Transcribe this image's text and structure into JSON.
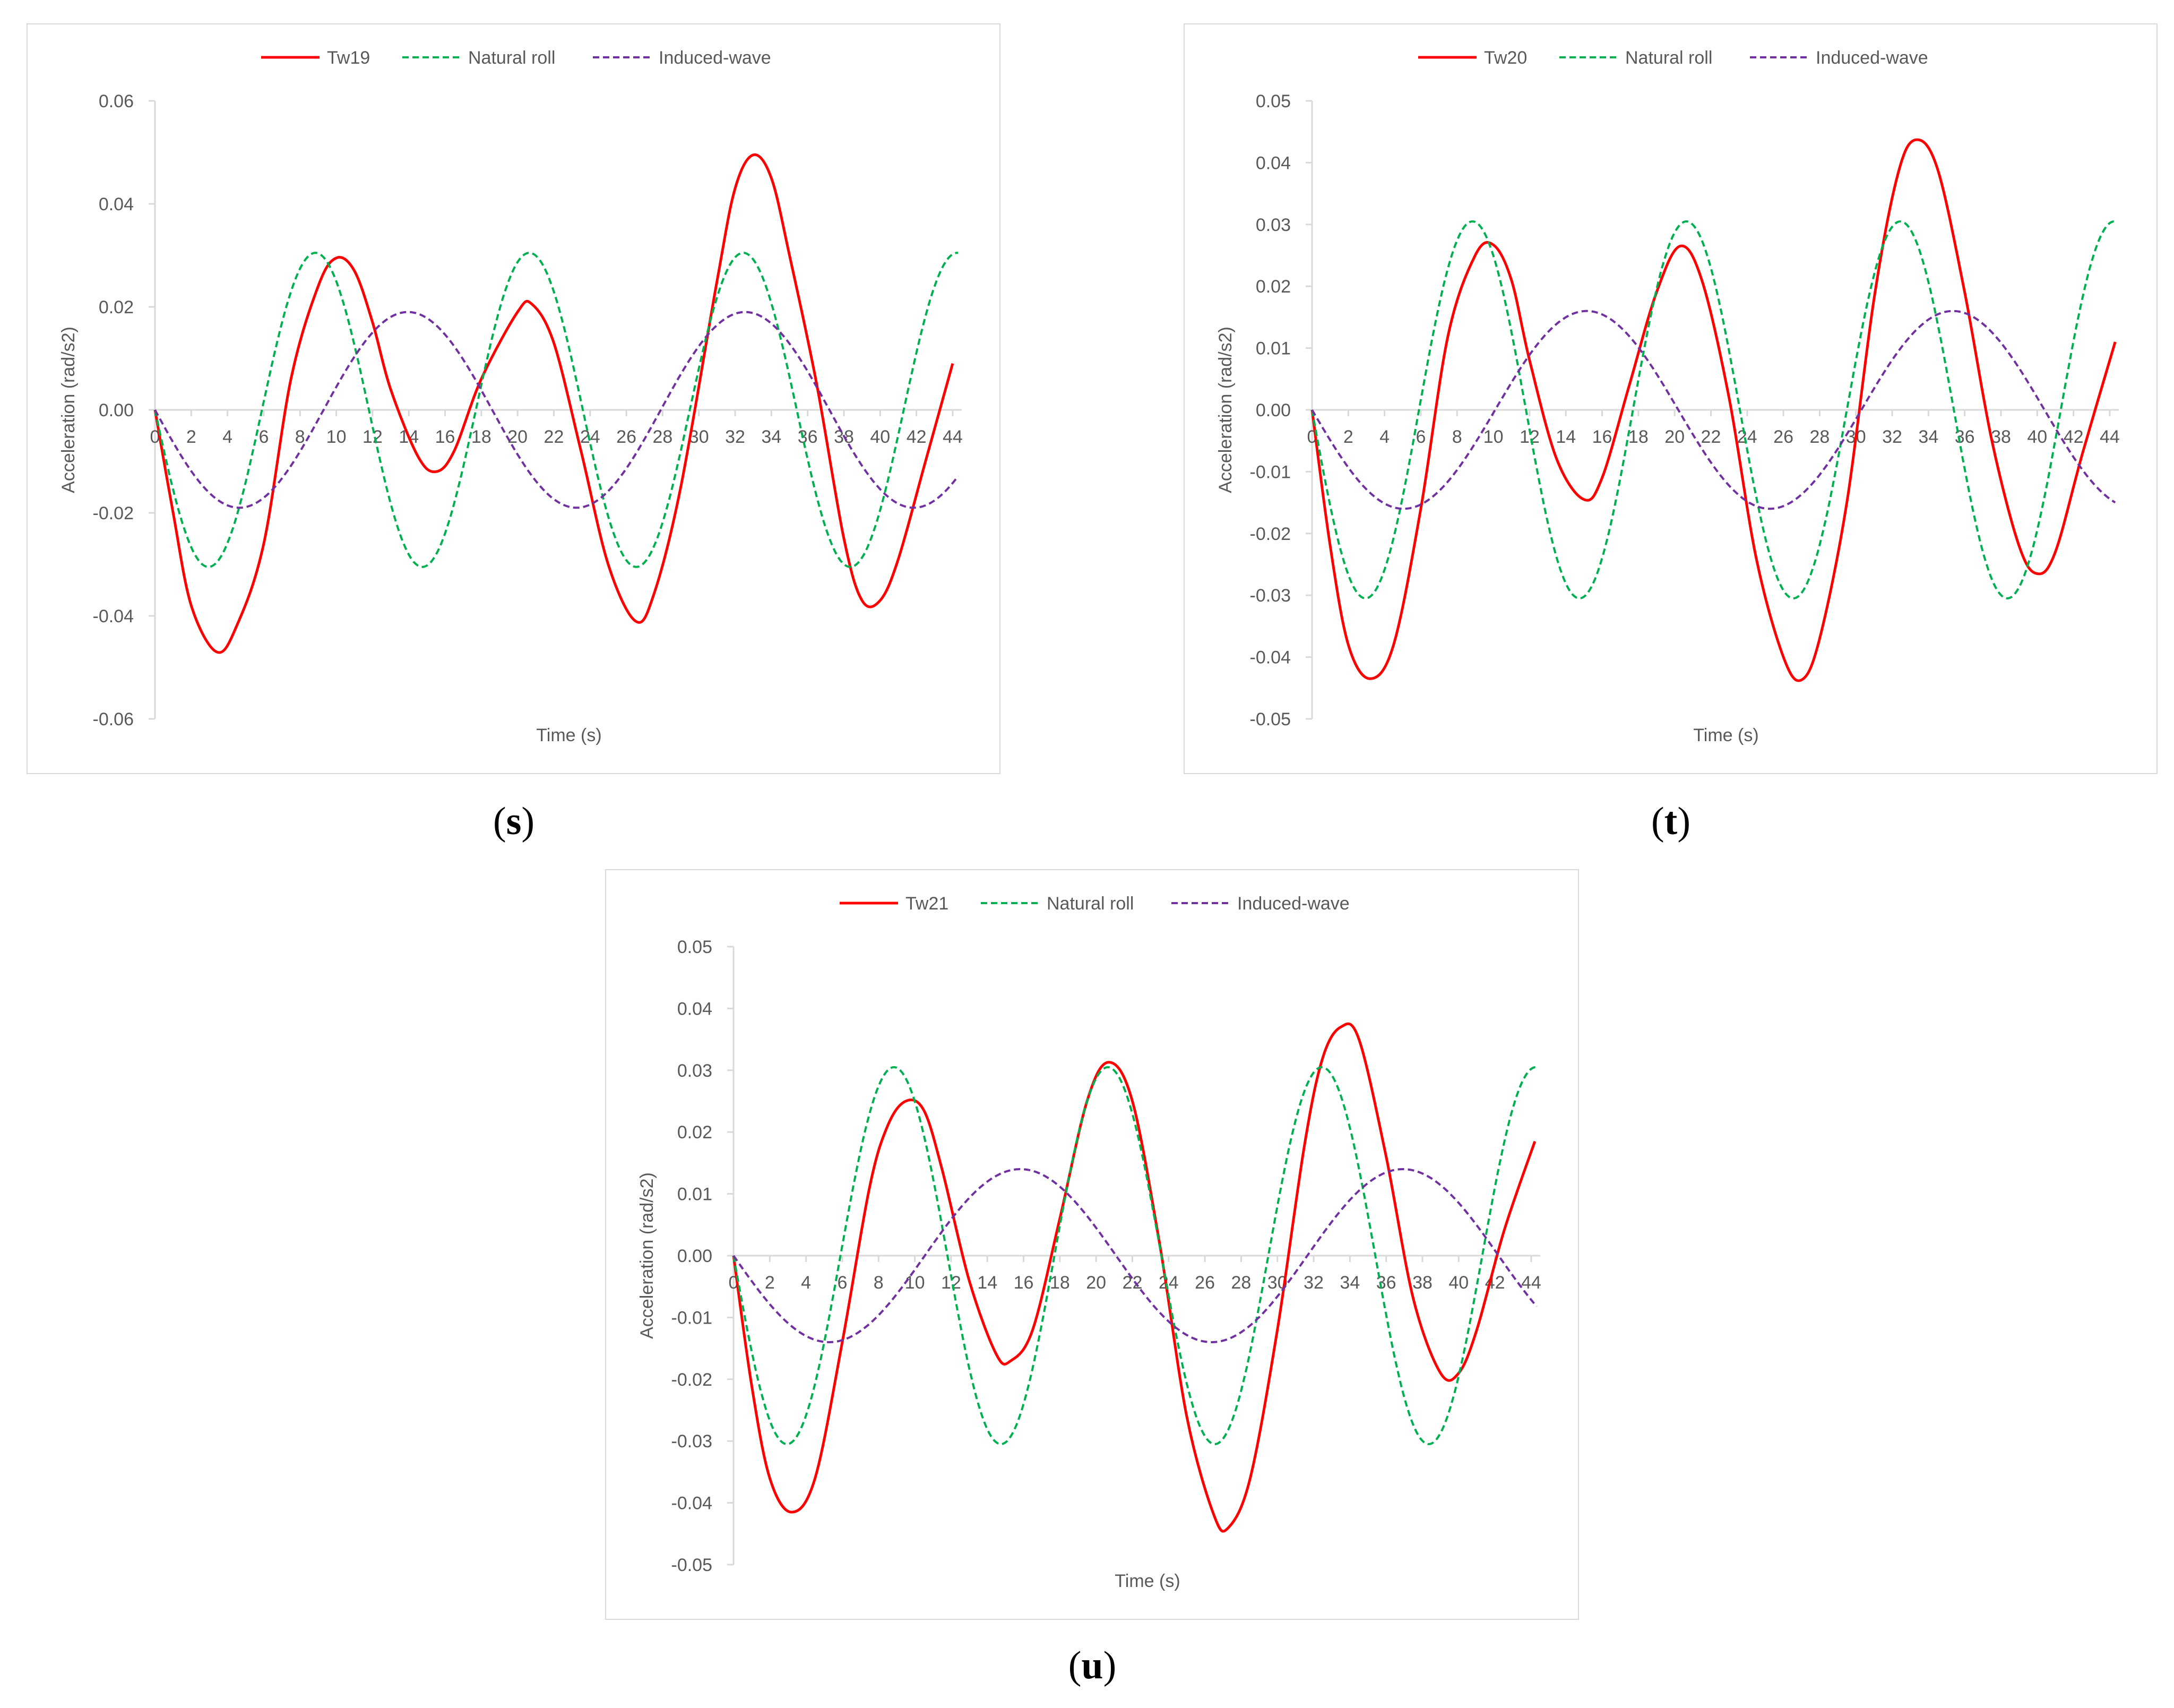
{
  "captions": [
    {
      "open": "(",
      "letter": "s",
      "close": ")"
    },
    {
      "open": "(",
      "letter": "t",
      "close": ")"
    },
    {
      "open": "(",
      "letter": "u",
      "close": ")"
    }
  ],
  "colors": {
    "measured": "#ff0000",
    "natural": "#00b050",
    "induced": "#7030a0",
    "axis": "#d9d9d9",
    "text": "#595959"
  },
  "chart_data": [
    {
      "type": "line",
      "title": "",
      "xlabel": "Time (s)",
      "ylabel": "Acceleration (rad/s2)",
      "xlim": [
        0,
        44.5
      ],
      "x_ticks": [
        "0",
        "2",
        "4",
        "6",
        "8",
        "10",
        "12",
        "14",
        "16",
        "18",
        "20",
        "22",
        "24",
        "26",
        "28",
        "30",
        "32",
        "34",
        "36",
        "38",
        "40",
        "42",
        "44"
      ],
      "ylim": [
        -0.06,
        0.06
      ],
      "y_ticks": [
        "0.06",
        "0.04",
        "0.02",
        "0.00",
        "-0.02",
        "-0.04",
        "-0.06"
      ],
      "legend": "top",
      "series": [
        {
          "name": "Tw19",
          "style": "solid",
          "color": "#ff0000",
          "points": [
            [
              0,
              0
            ],
            [
              1,
              -0.02
            ],
            [
              2,
              -0.038
            ],
            [
              3.4,
              -0.047
            ],
            [
              4.5,
              -0.042
            ],
            [
              6,
              -0.026
            ],
            [
              7.5,
              0.006
            ],
            [
              9,
              0.024
            ],
            [
              10,
              0.0295
            ],
            [
              11,
              0.027
            ],
            [
              12,
              0.017
            ],
            [
              13,
              0.004
            ],
            [
              14.5,
              -0.009
            ],
            [
              15.5,
              -0.012
            ],
            [
              16.5,
              -0.008
            ],
            [
              18,
              0.006
            ],
            [
              20,
              0.019
            ],
            [
              20.8,
              0.0205
            ],
            [
              22,
              0.013
            ],
            [
              23.5,
              -0.008
            ],
            [
              25,
              -0.03
            ],
            [
              26.5,
              -0.041
            ],
            [
              27.5,
              -0.036
            ],
            [
              29,
              -0.015
            ],
            [
              31,
              0.025
            ],
            [
              32,
              0.043
            ],
            [
              33,
              0.0495
            ],
            [
              34,
              0.045
            ],
            [
              35,
              0.03
            ],
            [
              36.5,
              0.005
            ],
            [
              38,
              -0.025
            ],
            [
              39,
              -0.037
            ],
            [
              40,
              -0.037
            ],
            [
              41,
              -0.029
            ],
            [
              42.5,
              -0.01
            ],
            [
              44,
              0.009
            ]
          ]
        },
        {
          "name": "Natural roll",
          "style": "dashed",
          "color": "#00b050",
          "period": 11.8,
          "amplitude": 0.0305,
          "x_end": 44.3
        },
        {
          "name": "Induced-wave",
          "style": "dashed",
          "color": "#7030a0",
          "period": 18.6,
          "amplitude": 0.019,
          "x_end": 44.3
        }
      ]
    },
    {
      "type": "line",
      "title": "",
      "xlabel": "Time (s)",
      "ylabel": "Acceleration (rad/s2)",
      "xlim": [
        0,
        44.5
      ],
      "x_ticks": [
        "0",
        "2",
        "4",
        "6",
        "8",
        "10",
        "12",
        "14",
        "16",
        "18",
        "20",
        "22",
        "24",
        "26",
        "28",
        "30",
        "32",
        "34",
        "36",
        "38",
        "40",
        "42",
        "44"
      ],
      "ylim": [
        -0.05,
        0.05
      ],
      "y_ticks": [
        "0.05",
        "0.04",
        "0.03",
        "0.02",
        "0.01",
        "0.00",
        "-0.01",
        "-0.02",
        "-0.03",
        "-0.04",
        "-0.05"
      ],
      "legend": "top",
      "series": [
        {
          "name": "Tw20",
          "style": "solid",
          "color": "#ff0000",
          "points": [
            [
              0,
              0
            ],
            [
              1,
              -0.022
            ],
            [
              2,
              -0.038
            ],
            [
              3.2,
              -0.0435
            ],
            [
              4.5,
              -0.038
            ],
            [
              6,
              -0.016
            ],
            [
              7.5,
              0.012
            ],
            [
              9,
              0.025
            ],
            [
              10,
              0.0267
            ],
            [
              11,
              0.021
            ],
            [
              12,
              0.008
            ],
            [
              13.5,
              -0.008
            ],
            [
              15,
              -0.0145
            ],
            [
              16,
              -0.011
            ],
            [
              17.5,
              0.004
            ],
            [
              19,
              0.019
            ],
            [
              20.3,
              0.0265
            ],
            [
              21.5,
              0.021
            ],
            [
              23,
              0.002
            ],
            [
              24.5,
              -0.024
            ],
            [
              26,
              -0.04
            ],
            [
              27,
              -0.0437
            ],
            [
              28,
              -0.037
            ],
            [
              29.5,
              -0.015
            ],
            [
              31,
              0.018
            ],
            [
              32.3,
              0.038
            ],
            [
              33.3,
              0.0437
            ],
            [
              34.5,
              0.039
            ],
            [
              36,
              0.019
            ],
            [
              37.5,
              -0.005
            ],
            [
              39,
              -0.022
            ],
            [
              40,
              -0.0265
            ],
            [
              41,
              -0.023
            ],
            [
              42.5,
              -0.007
            ],
            [
              44.3,
              0.011
            ]
          ]
        },
        {
          "name": "Natural roll",
          "style": "dashed",
          "color": "#00b050",
          "period": 11.8,
          "amplitude": 0.0305,
          "x_end": 44.3
        },
        {
          "name": "Induced-wave",
          "style": "dashed",
          "color": "#7030a0",
          "period": 20.2,
          "amplitude": 0.016,
          "x_end": 44.3
        }
      ]
    },
    {
      "type": "line",
      "title": "",
      "xlabel": "Time (s)",
      "ylabel": "Acceleration (rad/s2)",
      "xlim": [
        0,
        44.5
      ],
      "x_ticks": [
        "0",
        "2",
        "4",
        "6",
        "8",
        "10",
        "12",
        "14",
        "16",
        "18",
        "20",
        "22",
        "24",
        "26",
        "28",
        "30",
        "32",
        "34",
        "36",
        "38",
        "40",
        "42",
        "44"
      ],
      "ylim": [
        -0.05,
        0.05
      ],
      "y_ticks": [
        "0.05",
        "0.04",
        "0.03",
        "0.02",
        "0.01",
        "0.00",
        "-0.01",
        "-0.02",
        "-0.03",
        "-0.04",
        "-0.05"
      ],
      "legend": "top",
      "series": [
        {
          "name": "Tw21",
          "style": "solid",
          "color": "#ff0000",
          "points": [
            [
              0,
              0
            ],
            [
              1,
              -0.021
            ],
            [
              2,
              -0.036
            ],
            [
              3.2,
              -0.0415
            ],
            [
              4.5,
              -0.036
            ],
            [
              6,
              -0.014
            ],
            [
              7.5,
              0.011
            ],
            [
              8.5,
              0.021
            ],
            [
              9.5,
              0.025
            ],
            [
              10.5,
              0.0235
            ],
            [
              11.5,
              0.014
            ],
            [
              13,
              -0.004
            ],
            [
              14.5,
              -0.016
            ],
            [
              15.3,
              -0.017
            ],
            [
              16.5,
              -0.012
            ],
            [
              18,
              0.006
            ],
            [
              19.5,
              0.025
            ],
            [
              20.7,
              0.0313
            ],
            [
              22,
              0.025
            ],
            [
              23.5,
              0.002
            ],
            [
              25,
              -0.026
            ],
            [
              26.5,
              -0.042
            ],
            [
              27.3,
              -0.044
            ],
            [
              28.5,
              -0.036
            ],
            [
              30,
              -0.012
            ],
            [
              31.5,
              0.018
            ],
            [
              32.5,
              0.032
            ],
            [
              33.5,
              0.037
            ],
            [
              34.5,
              0.035
            ],
            [
              36,
              0.016
            ],
            [
              37.5,
              -0.007
            ],
            [
              39,
              -0.019
            ],
            [
              40,
              -0.019
            ],
            [
              41,
              -0.012
            ],
            [
              42.5,
              0.004
            ],
            [
              44.2,
              0.0185
            ]
          ]
        },
        {
          "name": "Natural roll",
          "style": "dashed",
          "color": "#00b050",
          "period": 11.8,
          "amplitude": 0.0305,
          "x_end": 44.3
        },
        {
          "name": "Induced-wave",
          "style": "dashed",
          "color": "#7030a0",
          "period": 21.1,
          "amplitude": 0.014,
          "x_end": 44.3
        }
      ]
    }
  ]
}
